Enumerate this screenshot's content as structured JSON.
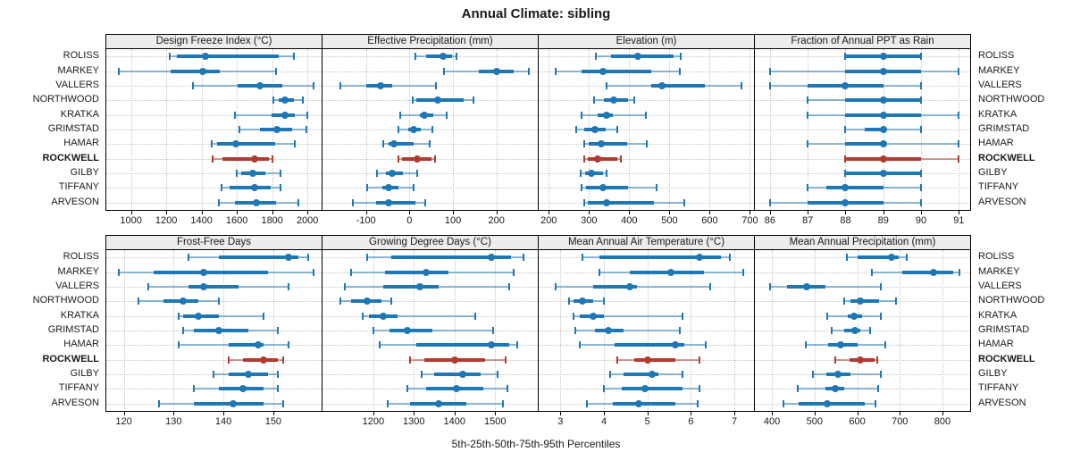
{
  "title": "Annual Climate: sibling",
  "caption": "5th-25th-50th-75th-95th Percentiles",
  "percentile_levels": [
    5,
    25,
    50,
    75,
    95
  ],
  "stations": [
    "ROLISS",
    "MARKEY",
    "VALLERS",
    "NORTHWOOD",
    "KRATKA",
    "GRIMSTAD",
    "HAMAR",
    "ROCKWELL",
    "GILBY",
    "TIFFANY",
    "ARVESON"
  ],
  "highlight_station": "ROCKWELL",
  "colors": {
    "series": "#1f77b4",
    "highlight": "#b23a2e",
    "header_bg": "#ececec",
    "grid": "#c6c6c6",
    "border": "#000000"
  },
  "chart_data": [
    {
      "type": "dot-interval",
      "title": "Design Freeze Index (°C)",
      "xlim": [
        860,
        2080
      ],
      "ticks": [
        1000,
        1200,
        1400,
        1600,
        1800,
        2000
      ],
      "values": [
        [
          1220,
          1260,
          1420,
          1835,
          1925
        ],
        [
          930,
          1225,
          1405,
          1505,
          1820
        ],
        [
          1350,
          1605,
          1730,
          1855,
          2035
        ],
        [
          1805,
          1835,
          1870,
          1925,
          1975
        ],
        [
          1590,
          1795,
          1870,
          1930,
          2000
        ],
        [
          1615,
          1730,
          1825,
          1915,
          1995
        ],
        [
          1455,
          1490,
          1595,
          1815,
          1930
        ],
        [
          1460,
          1520,
          1700,
          1780,
          1800
        ],
        [
          1600,
          1625,
          1690,
          1760,
          1845
        ],
        [
          1515,
          1560,
          1700,
          1790,
          1845
        ],
        [
          1500,
          1590,
          1710,
          1820,
          1950
        ]
      ]
    },
    {
      "type": "dot-interval",
      "title": "Effective Precipitation (mm)",
      "xlim": [
        -200,
        295
      ],
      "ticks": [
        -100,
        0,
        100,
        200
      ],
      "values": [
        [
          13,
          38,
          77,
          98,
          108
        ],
        [
          80,
          160,
          201,
          240,
          274
        ],
        [
          -158,
          -100,
          -66,
          -39,
          60
        ],
        [
          8,
          16,
          64,
          125,
          147
        ],
        [
          -22,
          24,
          35,
          55,
          85
        ],
        [
          -25,
          -2,
          10,
          25,
          52
        ],
        [
          -61,
          -47,
          -35,
          9,
          47
        ],
        [
          -25,
          -17,
          17,
          50,
          59
        ],
        [
          -74,
          -55,
          -39,
          -15,
          18
        ],
        [
          -98,
          -63,
          -47,
          -25,
          9
        ],
        [
          -130,
          -77,
          -47,
          13,
          36
        ]
      ]
    },
    {
      "type": "dot-interval",
      "title": "Elevation (m)",
      "xlim": [
        175,
        710
      ],
      "ticks": [
        200,
        300,
        400,
        500,
        600,
        700
      ],
      "values": [
        [
          316,
          354,
          421,
          511,
          527
        ],
        [
          218,
          282,
          334,
          454,
          525
        ],
        [
          344,
          454,
          481,
          588,
          679
        ],
        [
          313,
          336,
          362,
          396,
          412
        ],
        [
          281,
          321,
          344,
          359,
          441
        ],
        [
          268,
          289,
          315,
          341,
          371
        ],
        [
          289,
          300,
          331,
          394,
          443
        ],
        [
          288,
          296,
          321,
          370,
          380
        ],
        [
          279,
          291,
          307,
          335,
          343
        ],
        [
          282,
          293,
          334,
          396,
          469
        ],
        [
          289,
          296,
          344,
          461,
          536
        ]
      ]
    },
    {
      "type": "dot-interval",
      "title": "Fraction of Annual PPT as Rain",
      "xlim": [
        85.6,
        91.3
      ],
      "ticks": [
        86,
        87,
        88,
        89,
        90,
        91
      ],
      "values": [
        [
          88,
          88,
          89,
          90,
          90
        ],
        [
          86,
          88,
          89,
          90,
          91
        ],
        [
          86,
          87,
          88,
          89,
          90
        ],
        [
          87,
          88,
          89,
          90,
          90
        ],
        [
          87,
          88,
          89,
          90,
          91
        ],
        [
          88,
          88.5,
          89,
          89,
          90
        ],
        [
          87,
          88,
          89,
          89,
          91
        ],
        [
          88,
          88,
          89,
          90,
          91
        ],
        [
          88,
          88,
          89,
          90,
          90
        ],
        [
          87,
          87.5,
          88,
          89,
          90
        ],
        [
          86,
          87,
          88,
          89,
          90
        ]
      ]
    },
    {
      "type": "dot-interval",
      "title": "Frost-Free Days",
      "xlim": [
        116.5,
        159.7
      ],
      "ticks": [
        120,
        130,
        140,
        150
      ],
      "values": [
        [
          133,
          139,
          153,
          155,
          157
        ],
        [
          119,
          126,
          136,
          149,
          158
        ],
        [
          125,
          133,
          136,
          143,
          153
        ],
        [
          123,
          128,
          132,
          135,
          139
        ],
        [
          131,
          132,
          135,
          139,
          148
        ],
        [
          132,
          134,
          139,
          145,
          151
        ],
        [
          131,
          141,
          147,
          148,
          153
        ],
        [
          141,
          144,
          148,
          151,
          152
        ],
        [
          138,
          141,
          145,
          149,
          151
        ],
        [
          134,
          139,
          144,
          148,
          151
        ],
        [
          127,
          134,
          142,
          148,
          152
        ]
      ]
    },
    {
      "type": "dot-interval",
      "title": "Growing Degree Days (°C)",
      "xlim": [
        1075,
        1605
      ],
      "ticks": [
        1200,
        1300,
        1400,
        1500
      ],
      "values": [
        [
          1185,
          1245,
          1490,
          1540,
          1570
        ],
        [
          1145,
          1230,
          1330,
          1385,
          1545
        ],
        [
          1130,
          1225,
          1315,
          1360,
          1535
        ],
        [
          1120,
          1145,
          1185,
          1220,
          1245
        ],
        [
          1175,
          1190,
          1225,
          1260,
          1450
        ],
        [
          1200,
          1240,
          1285,
          1345,
          1495
        ],
        [
          1215,
          1305,
          1490,
          1535,
          1555
        ],
        [
          1290,
          1325,
          1400,
          1475,
          1525
        ],
        [
          1320,
          1350,
          1420,
          1465,
          1505
        ],
        [
          1285,
          1330,
          1405,
          1470,
          1530
        ],
        [
          1235,
          1290,
          1360,
          1430,
          1520
        ]
      ]
    },
    {
      "type": "dot-interval",
      "title": "Mean Annual Air Temperature (°C)",
      "xlim": [
        2.5,
        7.45
      ],
      "ticks": [
        3,
        4,
        5,
        6,
        7
      ],
      "values": [
        [
          3.5,
          3.9,
          6.2,
          6.7,
          6.9
        ],
        [
          3.9,
          4.6,
          5.55,
          6.3,
          7.2
        ],
        [
          2.9,
          3.75,
          4.6,
          4.75,
          6.45
        ],
        [
          3.2,
          3.3,
          3.5,
          3.75,
          4.0
        ],
        [
          3.3,
          3.45,
          3.75,
          4.0,
          5.8
        ],
        [
          3.35,
          3.8,
          4.1,
          4.45,
          5.75
        ],
        [
          3.45,
          4.25,
          5.65,
          5.85,
          6.35
        ],
        [
          4.3,
          4.7,
          5.0,
          5.65,
          6.2
        ],
        [
          4.15,
          4.45,
          5.1,
          5.25,
          5.8
        ],
        [
          4.0,
          4.4,
          4.95,
          5.8,
          6.2
        ],
        [
          3.6,
          4.2,
          4.8,
          5.65,
          6.15
        ]
      ]
    },
    {
      "type": "dot-interval",
      "title": "Mean Annual Precipitation (mm)",
      "xlim": [
        360,
        865
      ],
      "ticks": [
        400,
        500,
        600,
        700,
        800
      ],
      "values": [
        [
          575,
          600,
          680,
          697,
          716
        ],
        [
          635,
          705,
          780,
          825,
          840
        ],
        [
          395,
          435,
          482,
          525,
          655
        ],
        [
          570,
          585,
          608,
          652,
          692
        ],
        [
          530,
          578,
          593,
          612,
          655
        ],
        [
          540,
          570,
          594,
          608,
          630
        ],
        [
          480,
          532,
          562,
          600,
          665
        ],
        [
          548,
          582,
          608,
          640,
          648
        ],
        [
          497,
          528,
          555,
          585,
          655
        ],
        [
          460,
          525,
          548,
          570,
          650
        ],
        [
          428,
          462,
          530,
          618,
          643
        ]
      ]
    }
  ]
}
